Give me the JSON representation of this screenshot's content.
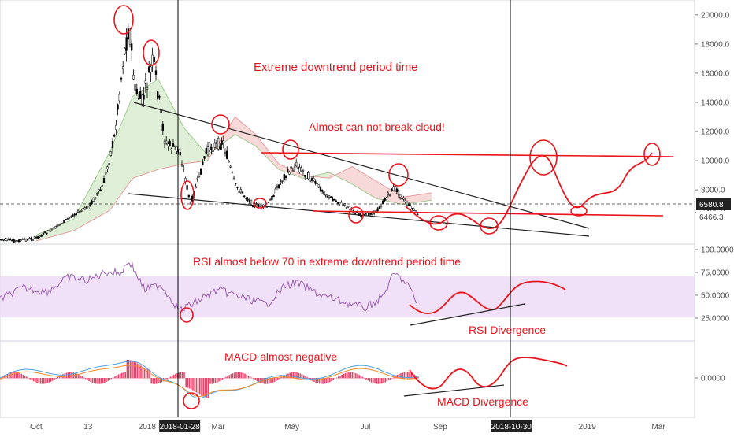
{
  "chart_data": [
    {
      "type": "candlestick",
      "instrument_note": "",
      "price_axis": {
        "ticks": [
          "20000.0",
          "18000.0",
          "16000.0",
          "14000.0",
          "12000.0",
          "10000.0",
          "8000.0",
          "6466.3"
        ],
        "tick_values": [
          20000,
          18000,
          16000,
          14000,
          12000,
          10000,
          8000,
          6466.3
        ],
        "last_price": "6580.8",
        "last_price_value": 6580.8,
        "ylim": [
          4500,
          20800
        ]
      },
      "x_axis": {
        "ticks": [
          "Oct",
          "13",
          "2018",
          "Mar",
          "May",
          "Jul",
          "Sep",
          "2019",
          "Mar"
        ],
        "tick_dates": [
          "2017-10-01",
          "2017-11-13",
          "2018-01-01",
          "2018-03-01",
          "2018-05-01",
          "2018-07-01",
          "2018-09-01",
          "2019-01-01",
          "2019-03-01"
        ],
        "xlim": [
          "2017-09-01",
          "2019-03-31"
        ],
        "highlighted_dates": [
          "2018-01-28",
          "2018-10-30"
        ]
      },
      "price_series": {
        "name": "",
        "dates": [
          "2017-09-01",
          "2017-09-15",
          "2017-10-01",
          "2017-10-15",
          "2017-11-01",
          "2017-11-13",
          "2017-11-25",
          "2017-12-05",
          "2017-12-12",
          "2017-12-17",
          "2017-12-22",
          "2017-12-28",
          "2018-01-06",
          "2018-01-16",
          "2018-01-28",
          "2018-02-06",
          "2018-02-20",
          "2018-03-05",
          "2018-03-15",
          "2018-03-30",
          "2018-04-10",
          "2018-04-25",
          "2018-05-05",
          "2018-05-20",
          "2018-06-01",
          "2018-06-15",
          "2018-06-28",
          "2018-07-10",
          "2018-07-25",
          "2018-08-05",
          "2018-08-14"
        ],
        "close": [
          4600,
          4500,
          4700,
          5300,
          6300,
          6800,
          8200,
          11600,
          16800,
          19300,
          14800,
          14000,
          16900,
          11200,
          10700,
          7000,
          10800,
          11300,
          8300,
          7000,
          6800,
          9000,
          9700,
          8500,
          7500,
          6900,
          6200,
          6500,
          8200,
          7000,
          6300
        ]
      },
      "ichimoku_cloud": {
        "dates": [
          "2017-10-01",
          "2017-11-01",
          "2017-12-01",
          "2017-12-20",
          "2018-01-10",
          "2018-02-01",
          "2018-02-20",
          "2018-03-15",
          "2018-04-01",
          "2018-04-20",
          "2018-05-10",
          "2018-06-01",
          "2018-06-20",
          "2018-07-10",
          "2018-08-01",
          "2018-08-25"
        ],
        "span_a": [
          4900,
          6000,
          10600,
          14400,
          15600,
          12200,
          10400,
          11800,
          11000,
          9400,
          8800,
          9200,
          8400,
          7400,
          7000,
          7300
        ],
        "span_b": [
          4500,
          5200,
          6600,
          8800,
          9400,
          9800,
          10000,
          13000,
          11800,
          9800,
          9000,
          8800,
          9600,
          8600,
          7500,
          7800
        ]
      },
      "annotations": {
        "title_text": "Extreme downtrend period time",
        "cloud_text": "Almost can not break cloud!"
      }
    },
    {
      "type": "line",
      "name": "RSI",
      "y_axis": {
        "ticks": [
          "100.0000",
          "75.0000",
          "50.0000",
          "25.0000"
        ],
        "tick_values": [
          100,
          75,
          50,
          25
        ],
        "ylim": [
          0,
          106
        ]
      },
      "band": [
        30,
        70
      ],
      "dates": [
        "2017-09-01",
        "2017-09-20",
        "2017-10-10",
        "2017-10-28",
        "2017-11-13",
        "2017-11-28",
        "2017-12-10",
        "2017-12-17",
        "2017-12-30",
        "2018-01-12",
        "2018-01-28",
        "2018-02-12",
        "2018-03-01",
        "2018-03-20",
        "2018-04-10",
        "2018-04-25",
        "2018-05-05",
        "2018-05-25",
        "2018-06-15",
        "2018-07-01",
        "2018-07-15",
        "2018-07-25",
        "2018-08-05",
        "2018-08-14"
      ],
      "values": [
        46,
        58,
        54,
        70,
        66,
        76,
        74,
        88,
        56,
        62,
        33,
        44,
        56,
        48,
        40,
        60,
        64,
        50,
        42,
        36,
        48,
        74,
        62,
        38
      ],
      "annotations": {
        "title_text": "RSI almost below 70 in extreme downtrend period time",
        "divergence_text": "RSI Divergence"
      }
    },
    {
      "type": "bar+line",
      "name": "MACD",
      "y_axis": {
        "ticks": [
          "0.0000"
        ],
        "tick_values": [
          0
        ],
        "ylim": [
          -1,
          1
        ]
      },
      "annotations": {
        "title_text": "MACD almost negative",
        "divergence_text": "MACD Divergence"
      }
    }
  ],
  "legend": {
    "last_price_tag": "6580.8",
    "low_price_tag": "6466.3"
  }
}
